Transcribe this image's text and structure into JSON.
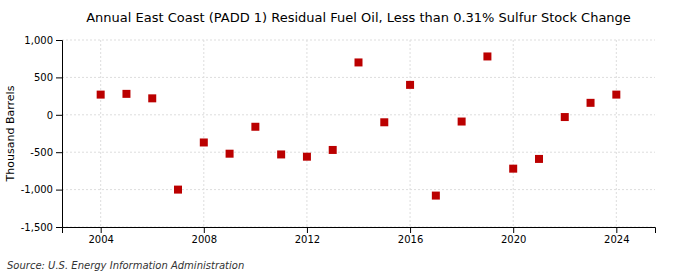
{
  "chart_data": {
    "type": "scatter",
    "title": "Annual East Coast (PADD 1) Residual Fuel Oil, Less than 0.31% Sulfur Stock Change",
    "ylabel": "Thousand Barrels",
    "source": "Source: U.S. Energy Information Administration",
    "x": [
      2004,
      2005,
      2006,
      2007,
      2008,
      2009,
      2010,
      2011,
      2012,
      2013,
      2014,
      2015,
      2016,
      2017,
      2018,
      2019,
      2020,
      2021,
      2022,
      2023,
      2024
    ],
    "values": [
      270,
      280,
      220,
      -1000,
      -370,
      -520,
      -160,
      -530,
      -560,
      -470,
      700,
      -100,
      400,
      -1080,
      -90,
      780,
      -720,
      -590,
      -30,
      160,
      270
    ],
    "color": "#bb0000",
    "marker": "square",
    "grid": true,
    "xlim": [
      2002.5,
      2025.5
    ],
    "xticks": [
      2004,
      2008,
      2012,
      2016,
      2020,
      2024
    ],
    "ylim": [
      -1500,
      1000
    ],
    "yticks": [
      {
        "value": -1500,
        "label": "-1,500"
      },
      {
        "value": -1000,
        "label": "-1,000"
      },
      -500,
      0,
      500,
      {
        "value": 1000,
        "label": "1,000"
      }
    ]
  }
}
